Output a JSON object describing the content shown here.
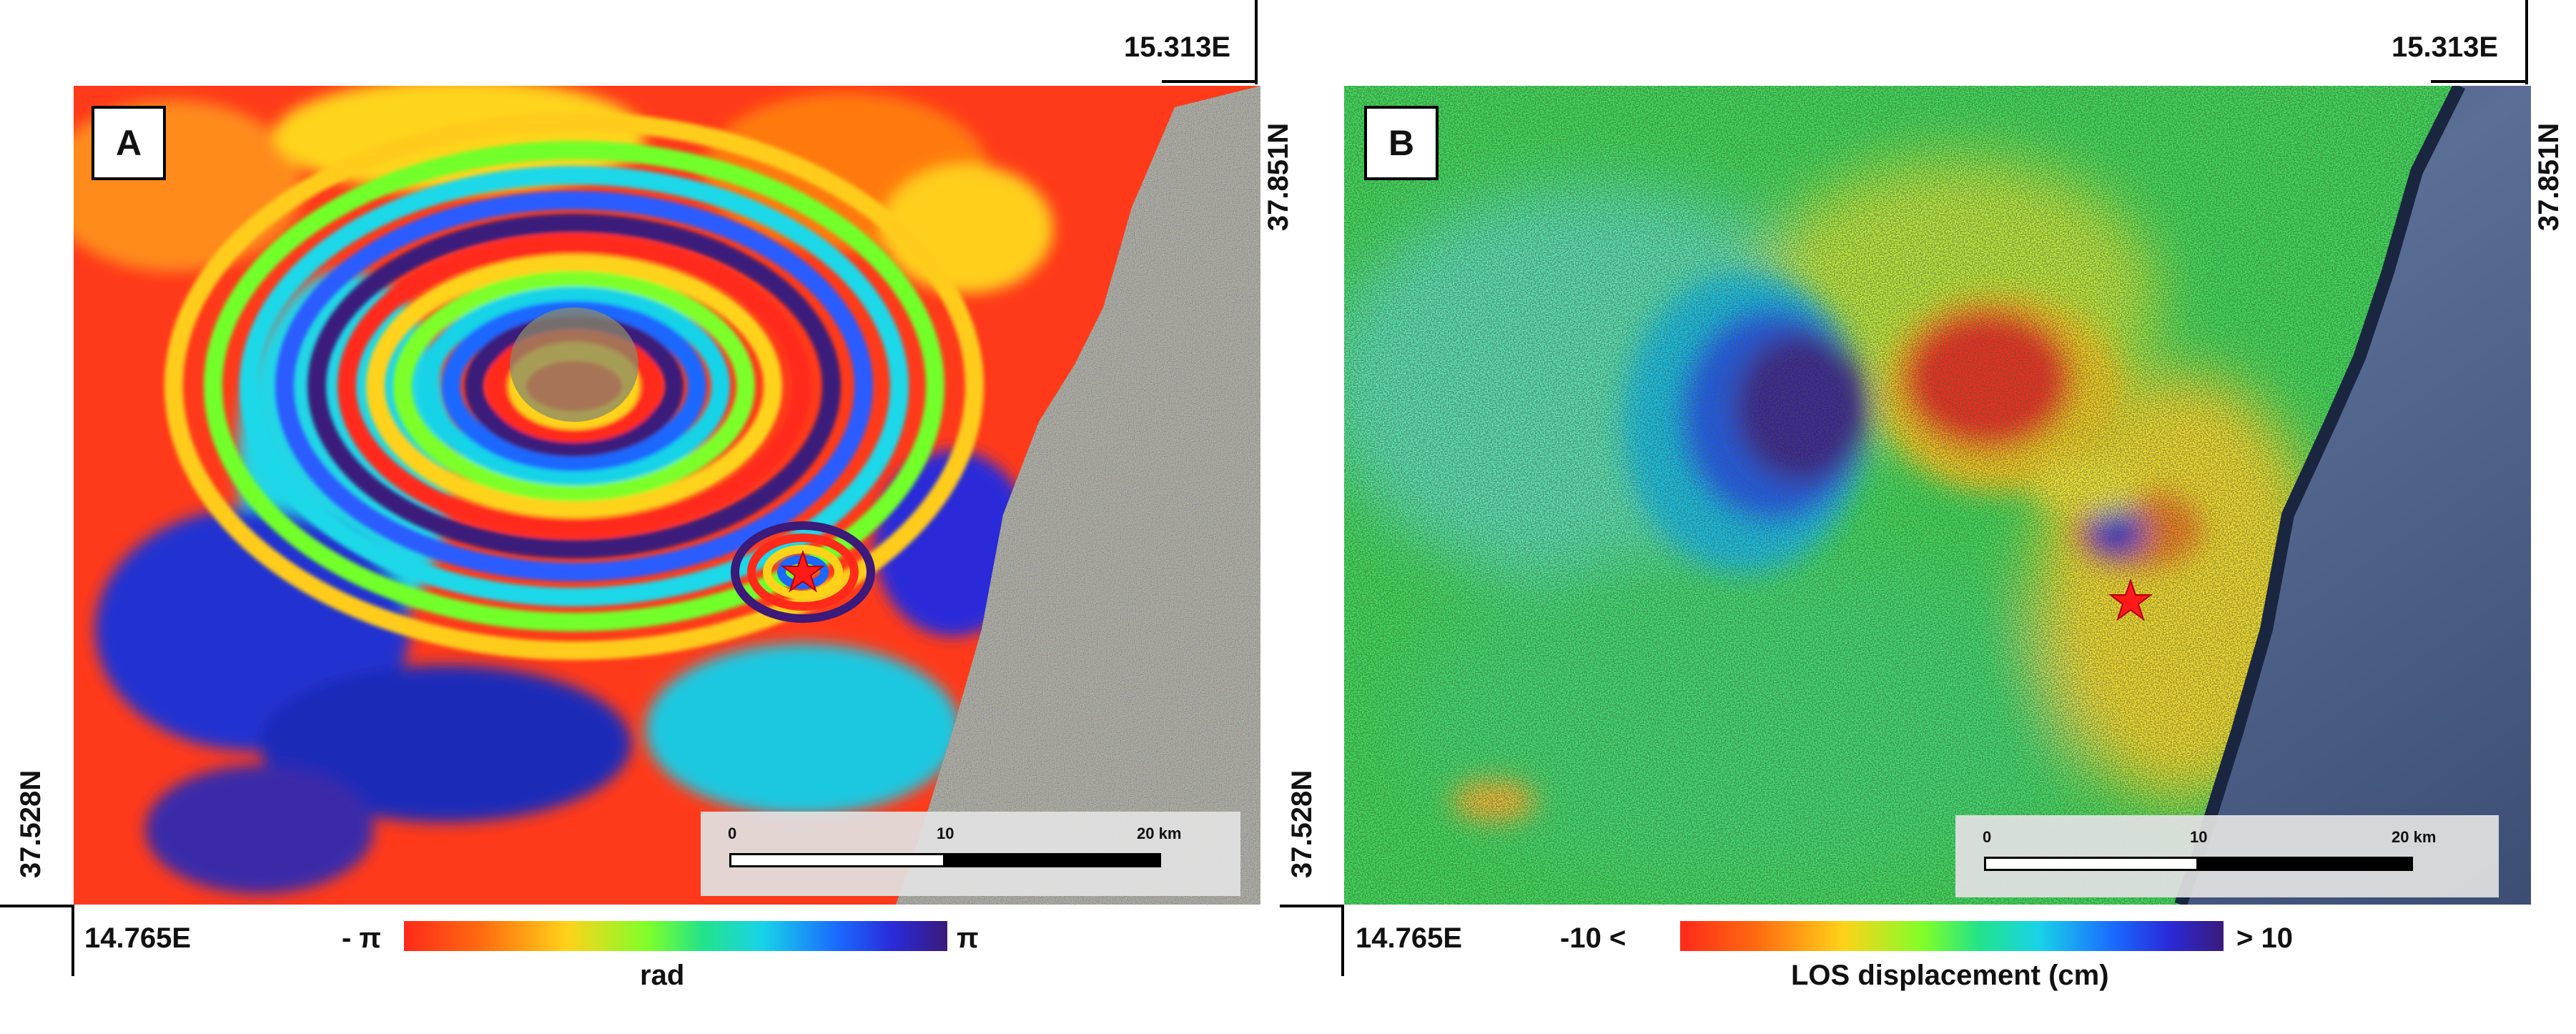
{
  "panels": {
    "a": {
      "label": "A",
      "coords": {
        "top_right_lon": "15.313E",
        "right_lat": "37.851N",
        "left_lat": "37.528N",
        "bottom_left_lon": "14.765E"
      },
      "scalebar": {
        "tick_0": "0",
        "tick_10": "10",
        "tick_20": "20 km"
      },
      "colorbar": {
        "min_label": "- π",
        "max_label": "π",
        "title": "rad"
      }
    },
    "b": {
      "label": "B",
      "coords": {
        "top_right_lon": "15.313E",
        "right_lat": "37.851N",
        "left_lat": "37.528N",
        "bottom_left_lon": "14.765E"
      },
      "scalebar": {
        "tick_0": "0",
        "tick_10": "10",
        "tick_20": "20 km"
      },
      "colorbar": {
        "min_label": "-10 <",
        "max_label": "> 10",
        "title": "LOS displacement (cm)"
      }
    }
  },
  "colors": {
    "spectrum": [
      "#ff2a1a",
      "#ff6a10",
      "#ffd21a",
      "#7dff2a",
      "#22e38a",
      "#18d3e8",
      "#1a68ff",
      "#2a2ad8",
      "#3b1a7a"
    ],
    "star": "#ff1a1a",
    "sea": "#4a5e86"
  }
}
